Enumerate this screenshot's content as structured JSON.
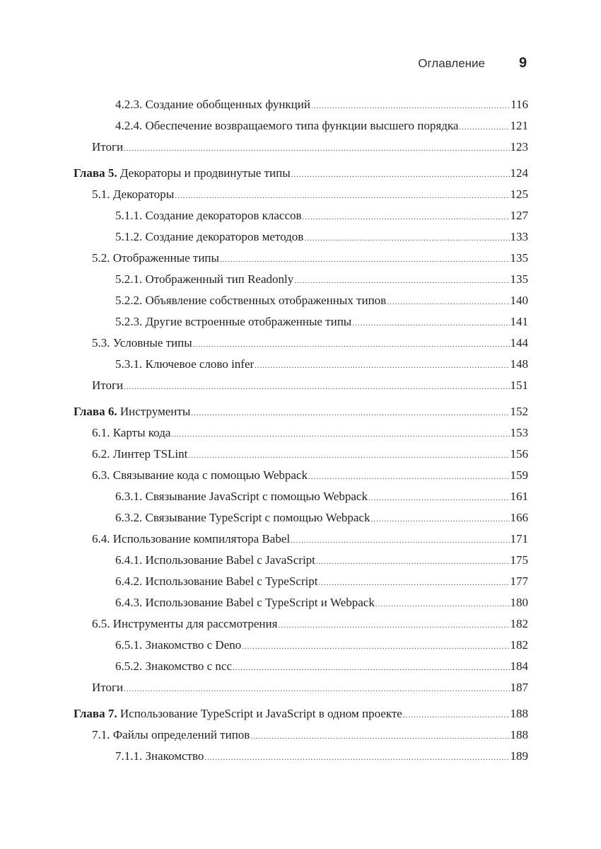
{
  "header": {
    "title": "Оглавление",
    "page_number": "9"
  },
  "entries": [
    {
      "level": 2,
      "label": "4.2.3. Создание обобщенных функций",
      "page": "116"
    },
    {
      "level": 2,
      "label": "4.2.4. Обеспечение возвращаемого типа функции высшего порядка",
      "page": "121"
    },
    {
      "level": 1,
      "label": "Итоги",
      "page": "123"
    },
    {
      "level": 0,
      "prefix": "Глава 5.",
      "label": " Декораторы и продвинутые типы",
      "page": "124"
    },
    {
      "level": 1,
      "label": "5.1. Декораторы",
      "page": "125"
    },
    {
      "level": 2,
      "label": "5.1.1. Создание декораторов классов",
      "page": "127"
    },
    {
      "level": 2,
      "label": "5.1.2. Создание декораторов методов",
      "page": "133"
    },
    {
      "level": 1,
      "label": "5.2. Отображенные типы",
      "page": "135"
    },
    {
      "level": 2,
      "label": "5.2.1. Отображенный тип Readonly",
      "page": "135"
    },
    {
      "level": 2,
      "label": "5.2.2. Объявление собственных отображенных типов",
      "page": "140"
    },
    {
      "level": 2,
      "label": "5.2.3. Другие встроенные отображенные типы",
      "page": "141"
    },
    {
      "level": 1,
      "label": "5.3. Условные типы",
      "page": "144"
    },
    {
      "level": 2,
      "label": "5.3.1. Ключевое слово infer",
      "page": "148"
    },
    {
      "level": 1,
      "label": "Итоги",
      "page": "151"
    },
    {
      "level": 0,
      "prefix": "Глава 6.",
      "label": " Инструменты",
      "page": "152"
    },
    {
      "level": 1,
      "label": "6.1. Карты кода",
      "page": "153"
    },
    {
      "level": 1,
      "label": "6.2. Линтер TSLint",
      "page": "156"
    },
    {
      "level": 1,
      "label": "6.3. Связывание кода с помощью Webpack",
      "page": "159"
    },
    {
      "level": 2,
      "label": "6.3.1. Связывание JavaScript с помощью Webpack",
      "page": "161"
    },
    {
      "level": 2,
      "label": "6.3.2. Связывание TypeScript с помощью Webpack",
      "page": "166"
    },
    {
      "level": 1,
      "label": "6.4. Использование компилятора Babel",
      "page": "171"
    },
    {
      "level": 2,
      "label": "6.4.1. Использование Babel с JavaScript",
      "page": "175"
    },
    {
      "level": 2,
      "label": "6.4.2. Использование Babel с TypeScript",
      "page": "177"
    },
    {
      "level": 2,
      "label": "6.4.3. Использование Babel с TypeScript и Webpack",
      "page": "180"
    },
    {
      "level": 1,
      "label": "6.5. Инструменты для рассмотрения",
      "page": "182"
    },
    {
      "level": 2,
      "label": "6.5.1. Знакомство с Deno",
      "page": "182"
    },
    {
      "level": 2,
      "label": "6.5.2. Знакомство с ncc",
      "page": "184"
    },
    {
      "level": 1,
      "label": "Итоги",
      "page": "187"
    },
    {
      "level": 0,
      "prefix": "Глава 7.",
      "label": " Использование TypeScript и JavaScript в одном проекте",
      "page": "188"
    },
    {
      "level": 1,
      "label": "7.1. Файлы определений типов",
      "page": "188"
    },
    {
      "level": 2,
      "label": "7.1.1. Знакомство",
      "page": "189"
    }
  ]
}
